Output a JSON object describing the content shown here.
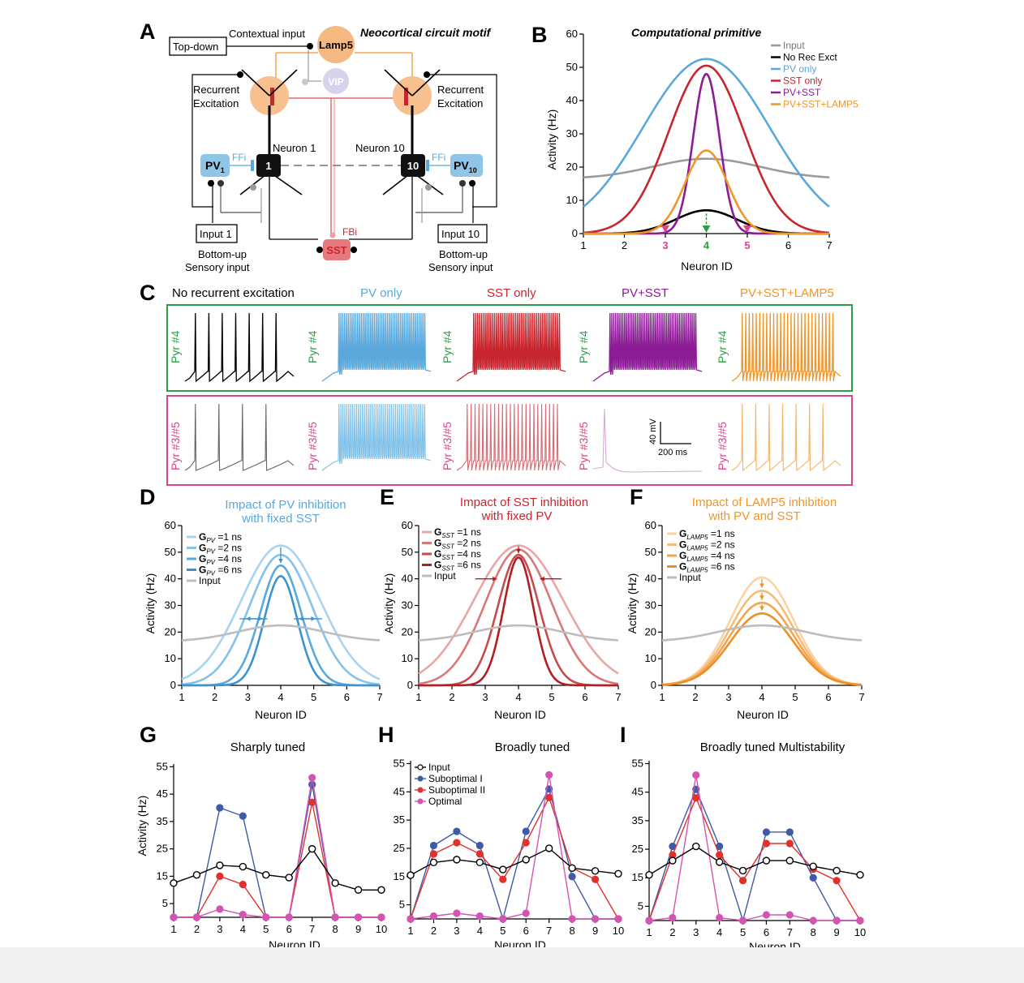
{
  "colors": {
    "input": "#9a9a9a",
    "norec": "#000000",
    "pv": "#5ba8dc",
    "sst": "#c8262e",
    "pvsst": "#8b1c96",
    "lamp5": "#f0962a",
    "green": "#2e9e4a",
    "pink": "#d9468a",
    "sub1": "#3f5aa8",
    "sub2": "#e0312b",
    "opt": "#d454b4"
  },
  "panelA": {
    "label": "A",
    "title": "Neocortical circuit motif",
    "topdown": "Top-down",
    "contextual": "Contextual input",
    "lamp5": "Lamp5",
    "vip": "VIP",
    "rec_left": [
      "Recurrent",
      "Excitation"
    ],
    "rec_right": [
      "Recurrent",
      "Excitation"
    ],
    "neuron1": "Neuron 1",
    "neuron10": "Neuron 10",
    "n1": "1",
    "n10": "10",
    "pv1": "PV",
    "pv1sub": "1",
    "pv10": "PV",
    "pv10sub": "10",
    "ffi_left": "FFi",
    "ffi_right": "FFi",
    "fbi": "FBi",
    "sst": "SST",
    "input1": "Input 1",
    "input10": "Input 10",
    "bu_left": [
      "Bottom-up",
      "Sensory input"
    ],
    "bu_right": [
      "Bottom-up",
      "Sensory input"
    ]
  },
  "panelB": {
    "label": "B",
    "title": "Computational primitive",
    "xlabel": "Neuron ID",
    "ylabel": "Activity (Hz)",
    "legend": [
      "Input",
      "No Rec Exct",
      "PV only",
      "SST only",
      "PV+SST",
      "PV+SST+LAMP5"
    ],
    "highlight_ticks": {
      "3": "3",
      "4": "4",
      "5": "5"
    }
  },
  "panelC": {
    "label": "C",
    "cols": [
      "No recurrent excitation",
      "PV only",
      "SST only",
      "PV+SST",
      "PV+SST+LAMP5"
    ],
    "row1": "Pyr #4",
    "row2": "Pyr #3/#5",
    "scale_v": "40 mV",
    "scale_t": "200 ms",
    "spikes_row1": [
      7,
      47,
      46,
      48,
      27
    ],
    "spikes_row2": [
      4,
      45,
      24,
      1,
      7
    ]
  },
  "panelD": {
    "label": "D",
    "title": [
      "Impact of PV inhibition",
      "with fixed SST"
    ],
    "legend": [
      "G",
      "G",
      "G",
      "G",
      "Input"
    ],
    "sub": "PV",
    "vals": [
      "=1 ns",
      "=2 ns",
      "=4 ns",
      "=6 ns"
    ],
    "xlabel": "Neuron ID",
    "ylabel": "Activity (Hz)"
  },
  "panelE": {
    "label": "E",
    "title": [
      "Impact of SST inhibition",
      "with fixed PV"
    ],
    "sub": "SST",
    "vals": [
      "=1 ns",
      "=2 ns",
      "=4 ns",
      "=6 ns"
    ],
    "inputLabel": "Input",
    "xlabel": "Neuron ID",
    "ylabel": "Activity (Hz)"
  },
  "panelF": {
    "label": "F",
    "title": [
      "Impact of LAMP5 inhibition",
      "with PV and SST"
    ],
    "sub": "LAMP5",
    "vals": [
      "=1 ns",
      "=2 ns",
      "=4 ns",
      "=6 ns"
    ],
    "inputLabel": "Input",
    "xlabel": "Neuron ID",
    "ylabel": "Activity (Hz)"
  },
  "panelG": {
    "label": "G",
    "title": "Sharply tuned",
    "xlabel": "Neuron ID",
    "ylabel": "Activity (Hz)"
  },
  "panelH": {
    "label": "H",
    "title": "Broadly tuned",
    "xlabel": "Neuron ID",
    "legend": [
      "Input",
      "Suboptimal I",
      "Suboptimal II",
      "Optimal"
    ]
  },
  "panelI": {
    "label": "I",
    "title": "Broadly tuned Multistability",
    "xlabel": "Neuron ID"
  },
  "chart_data": [
    {
      "id": "B",
      "type": "line",
      "x_range": [
        1,
        7
      ],
      "ylim": [
        0,
        60
      ],
      "yticks": [
        0,
        10,
        20,
        30,
        40,
        50,
        60
      ],
      "xticks": [
        1,
        2,
        3,
        4,
        5,
        6,
        7
      ],
      "series": [
        {
          "name": "Input",
          "kind": "gauss",
          "base": 16.5,
          "amp": 6,
          "sigma": 1.3
        },
        {
          "name": "No Rec Exct",
          "kind": "gauss",
          "base": 0,
          "amp": 7,
          "sigma": 0.75
        },
        {
          "name": "PV only",
          "kind": "gauss",
          "base": 0,
          "amp": 52.5,
          "sigma": 1.55
        },
        {
          "name": "SST only",
          "kind": "gauss",
          "base": 0,
          "amp": 50.5,
          "sigma": 0.92
        },
        {
          "name": "PV+SST",
          "kind": "gauss",
          "base": 0,
          "amp": 48,
          "sigma": 0.32
        },
        {
          "name": "PV+SST+LAMP5",
          "kind": "gauss",
          "base": 0,
          "amp": 25,
          "sigma": 0.52
        }
      ]
    },
    {
      "id": "D",
      "type": "line",
      "x_range": [
        1,
        7
      ],
      "ylim": [
        0,
        60
      ],
      "series": [
        {
          "name": "G_PV=1 ns",
          "amp": 52.5,
          "sigma": 1.2
        },
        {
          "name": "G_PV=2 ns",
          "amp": 49,
          "sigma": 0.95
        },
        {
          "name": "G_PV=4 ns",
          "amp": 45,
          "sigma": 0.62
        },
        {
          "name": "G_PV=6 ns",
          "amp": 41,
          "sigma": 0.5
        },
        {
          "name": "Input",
          "base": 16.5,
          "amp": 6,
          "sigma": 1.3
        }
      ]
    },
    {
      "id": "E",
      "type": "line",
      "x_range": [
        1,
        7
      ],
      "ylim": [
        0,
        60
      ],
      "series": [
        {
          "name": "G_SST=1 ns",
          "amp": 52.5,
          "sigma": 1.35
        },
        {
          "name": "G_SST=2 ns",
          "amp": 51,
          "sigma": 1.0
        },
        {
          "name": "G_SST=4 ns",
          "amp": 49,
          "sigma": 0.62
        },
        {
          "name": "G_SST=6 ns",
          "amp": 48,
          "sigma": 0.45
        },
        {
          "name": "Input",
          "base": 16.5,
          "amp": 6,
          "sigma": 1.3
        }
      ]
    },
    {
      "id": "F",
      "type": "line",
      "x_range": [
        1,
        7
      ],
      "ylim": [
        0,
        60
      ],
      "series": [
        {
          "name": "G_LAMP5=1 ns",
          "amp": 40.5,
          "sigma": 0.95
        },
        {
          "name": "G_LAMP5=2 ns",
          "amp": 35.5,
          "sigma": 0.95
        },
        {
          "name": "G_LAMP5=4 ns",
          "amp": 31,
          "sigma": 0.95
        },
        {
          "name": "G_LAMP5=6 ns",
          "amp": 27,
          "sigma": 0.95
        },
        {
          "name": "Input",
          "base": 16.5,
          "amp": 6,
          "sigma": 1.3
        }
      ]
    },
    {
      "id": "G",
      "type": "line",
      "x": [
        1,
        2,
        3,
        4,
        5,
        6,
        7,
        8,
        9,
        10
      ],
      "ylim": [
        0,
        55
      ],
      "yticks": [
        5,
        15,
        25,
        35,
        45,
        55
      ],
      "series": [
        {
          "name": "Input",
          "values": [
            12.5,
            15.5,
            19,
            18.5,
            15.5,
            14.5,
            25,
            12.5,
            10,
            10
          ]
        },
        {
          "name": "Suboptimal I",
          "values": [
            0,
            0,
            40,
            37,
            0,
            0,
            48.5,
            0,
            0,
            0
          ]
        },
        {
          "name": "Suboptimal II",
          "values": [
            0,
            0,
            15,
            12,
            0,
            0,
            42,
            0,
            0,
            0
          ]
        },
        {
          "name": "Optimal",
          "values": [
            0,
            0,
            3,
            1,
            0,
            0,
            51,
            0,
            0,
            0
          ]
        }
      ]
    },
    {
      "id": "H",
      "type": "line",
      "x": [
        1,
        2,
        3,
        4,
        5,
        6,
        7,
        8,
        9,
        10
      ],
      "ylim": [
        0,
        55
      ],
      "yticks": [
        5,
        15,
        25,
        35,
        45,
        55
      ],
      "series": [
        {
          "name": "Input",
          "values": [
            15.5,
            20,
            21,
            20,
            17.5,
            21,
            25,
            18,
            17,
            16
          ]
        },
        {
          "name": "Suboptimal I",
          "values": [
            0,
            26,
            31,
            26,
            0,
            31,
            46,
            15,
            0,
            0
          ]
        },
        {
          "name": "Suboptimal II",
          "values": [
            0,
            23,
            27,
            23,
            14,
            27,
            43,
            18,
            14,
            0
          ]
        },
        {
          "name": "Optimal",
          "values": [
            0,
            1,
            2,
            1,
            0,
            2,
            51,
            0,
            0,
            0
          ]
        }
      ]
    },
    {
      "id": "I",
      "type": "line",
      "x": [
        1,
        2,
        3,
        4,
        5,
        6,
        7,
        8,
        9,
        10
      ],
      "ylim": [
        0,
        55
      ],
      "yticks": [
        5,
        15,
        25,
        35,
        45,
        55
      ],
      "series": [
        {
          "name": "Input",
          "values": [
            16,
            21,
            26,
            20.5,
            17.5,
            21,
            21,
            19,
            17.5,
            16
          ]
        },
        {
          "name": "Suboptimal I",
          "values": [
            0,
            26,
            46,
            26,
            0,
            31,
            31,
            15,
            0,
            0
          ]
        },
        {
          "name": "Suboptimal II",
          "values": [
            0,
            23,
            43,
            23,
            14,
            27,
            27,
            18,
            14,
            0
          ]
        },
        {
          "name": "Optimal",
          "values": [
            0,
            1,
            51,
            1,
            0,
            2,
            2,
            0,
            0,
            0
          ]
        }
      ]
    }
  ]
}
